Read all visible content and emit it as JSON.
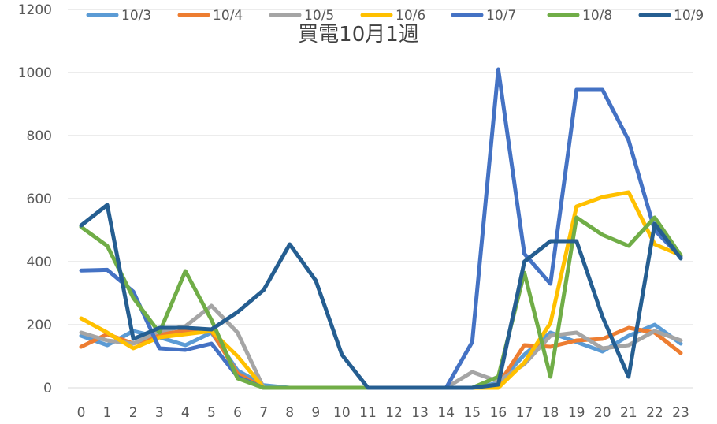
{
  "chart_data": {
    "type": "line",
    "title": "買電10月1週",
    "xlabel": "",
    "ylabel": "",
    "x": [
      0,
      1,
      2,
      3,
      4,
      5,
      6,
      7,
      8,
      9,
      10,
      11,
      12,
      13,
      14,
      15,
      16,
      17,
      18,
      19,
      20,
      21,
      22,
      23
    ],
    "ylim": [
      0,
      1200
    ],
    "yticks": [
      0,
      200,
      400,
      600,
      800,
      1000,
      1200
    ],
    "grid": true,
    "legend_position": "top",
    "series": [
      {
        "name": "10/3",
        "color": "#5B9BD5",
        "values": [
          165,
          135,
          180,
          160,
          135,
          175,
          55,
          8,
          0,
          0,
          0,
          0,
          0,
          0,
          0,
          0,
          15,
          105,
          175,
          145,
          115,
          165,
          200,
          140
        ]
      },
      {
        "name": "10/4",
        "color": "#ED7D31",
        "values": [
          130,
          170,
          140,
          170,
          180,
          180,
          45,
          0,
          0,
          0,
          0,
          0,
          0,
          0,
          0,
          0,
          10,
          135,
          130,
          150,
          155,
          190,
          175,
          110
        ]
      },
      {
        "name": "10/5",
        "color": "#A5A5A5",
        "values": [
          175,
          150,
          140,
          180,
          195,
          260,
          175,
          0,
          0,
          0,
          0,
          0,
          0,
          0,
          0,
          50,
          20,
          75,
          165,
          175,
          125,
          135,
          180,
          150
        ]
      },
      {
        "name": "10/6",
        "color": "#FFC000",
        "values": [
          220,
          175,
          125,
          160,
          170,
          180,
          100,
          0,
          0,
          0,
          0,
          0,
          0,
          0,
          0,
          0,
          0,
          80,
          205,
          575,
          605,
          620,
          455,
          420
        ]
      },
      {
        "name": "10/7",
        "color": "#4472C4",
        "values": [
          372,
          374,
          305,
          125,
          120,
          140,
          35,
          0,
          0,
          0,
          0,
          0,
          0,
          0,
          0,
          145,
          1010,
          425,
          330,
          945,
          945,
          785,
          500,
          415
        ]
      },
      {
        "name": "10/8",
        "color": "#70AD47",
        "values": [
          510,
          450,
          285,
          175,
          370,
          215,
          30,
          0,
          0,
          0,
          0,
          0,
          0,
          0,
          0,
          0,
          35,
          365,
          35,
          540,
          485,
          450,
          540,
          420
        ]
      },
      {
        "name": "10/9",
        "color": "#255E91",
        "values": [
          515,
          580,
          155,
          190,
          190,
          185,
          240,
          310,
          455,
          340,
          105,
          0,
          0,
          0,
          0,
          0,
          10,
          400,
          465,
          465,
          225,
          35,
          520,
          410
        ]
      }
    ]
  }
}
